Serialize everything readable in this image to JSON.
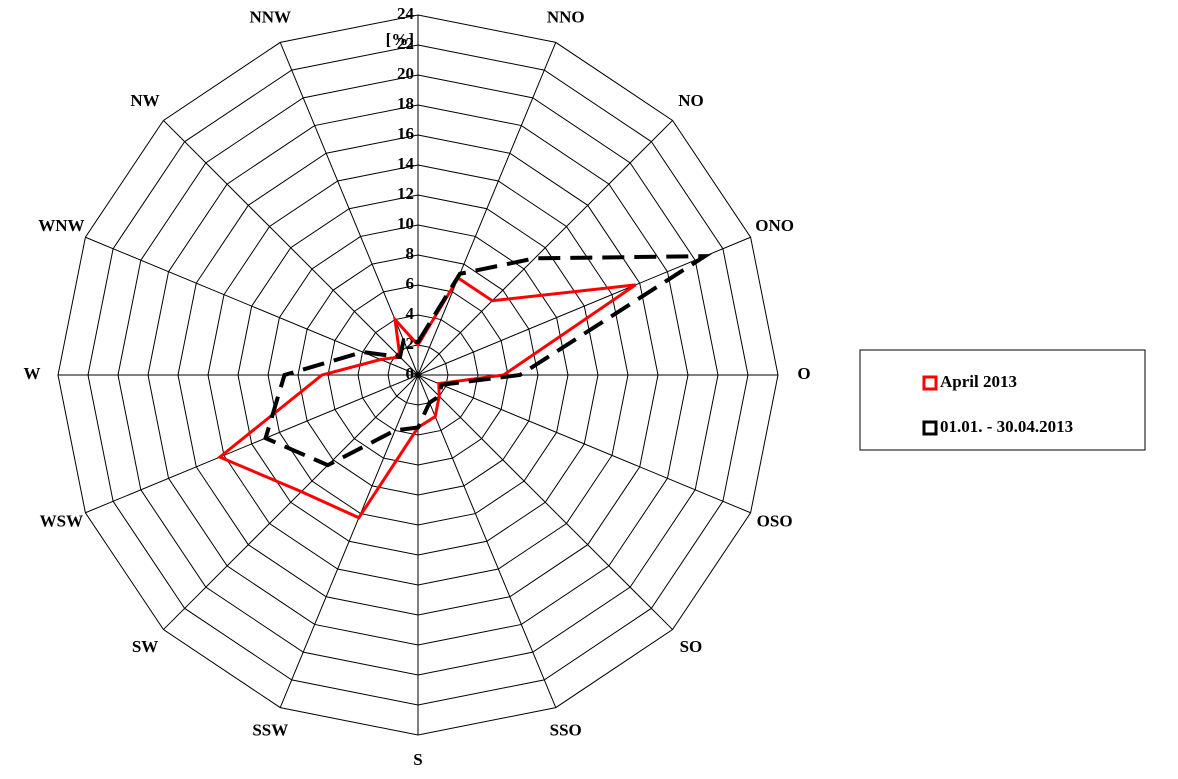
{
  "chart_data": {
    "type": "radar",
    "categories": [
      null,
      "NNO",
      "NO",
      "ONO",
      "O",
      "OSO",
      "SO",
      "SSO",
      "S",
      "SSW",
      "SW",
      "WSW",
      "W",
      "WNW",
      "NW",
      "NNW"
    ],
    "axis_label": "[%]",
    "rlim": [
      0,
      24
    ],
    "rticks": [
      0,
      2,
      4,
      6,
      8,
      10,
      12,
      14,
      16,
      18,
      20,
      22,
      24
    ],
    "grid": true,
    "legend": "right",
    "series": [
      {
        "name": "April 2013",
        "color": "#ff0000",
        "dash": false,
        "values": [
          2,
          7,
          7,
          15.7,
          5.7,
          1.5,
          2,
          3,
          3.5,
          10.3,
          11,
          14.3,
          6.4,
          2.7,
          1.7,
          4
        ]
      },
      {
        "name": "01.01. - 30.04.2013",
        "color": "#000000",
        "dash": true,
        "values": [
          2.2,
          7.3,
          11,
          20.7,
          6.8,
          1.7,
          2,
          2,
          3.5,
          4,
          8.5,
          11,
          8.9,
          4,
          1.7,
          2.5
        ]
      }
    ]
  }
}
